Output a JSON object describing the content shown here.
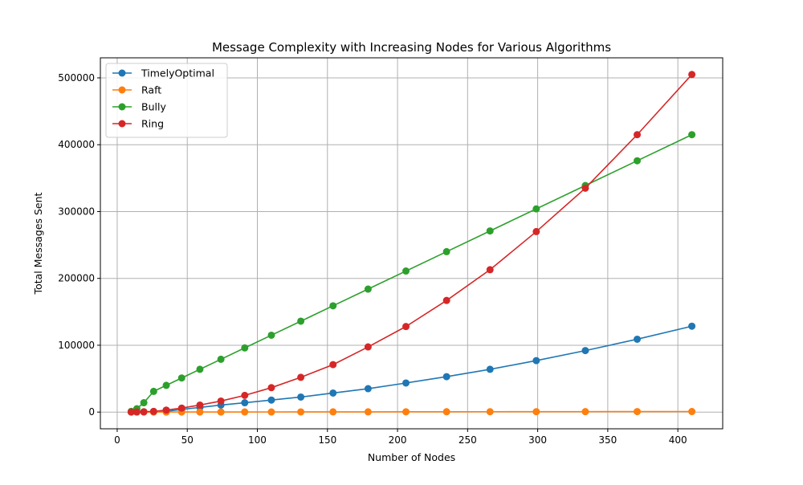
{
  "chart_data": {
    "type": "line",
    "title": "Message Complexity with Increasing Nodes for Various Algorithms",
    "xlabel": "Number of Nodes",
    "ylabel": "Total Messages Sent",
    "xlim": [
      -12,
      432
    ],
    "ylim": [
      -25000,
      530000
    ],
    "xticks": [
      0,
      50,
      100,
      150,
      200,
      250,
      300,
      350,
      400
    ],
    "yticks": [
      0,
      100000,
      200000,
      300000,
      400000,
      500000
    ],
    "grid": true,
    "legend_position": "top-left",
    "x": [
      10,
      14,
      19,
      26,
      35,
      46,
      59,
      74,
      91,
      110,
      131,
      154,
      179,
      206,
      235,
      266,
      299,
      334,
      371,
      410
    ],
    "series": [
      {
        "name": "TimelyOptimal",
        "color": "#1f77b4",
        "values": [
          100,
          180,
          320,
          600,
          1100,
          4000,
          7000,
          10500,
          14000,
          18000,
          22500,
          28500,
          35000,
          43500,
          53000,
          64000,
          77000,
          92000,
          109000,
          128500
        ]
      },
      {
        "name": "Raft",
        "color": "#ff7f0e",
        "values": [
          20,
          28,
          38,
          52,
          70,
          92,
          118,
          148,
          182,
          220,
          262,
          308,
          358,
          412,
          470,
          532,
          598,
          668,
          742,
          820
        ]
      },
      {
        "name": "Bully",
        "color": "#2ca02c",
        "values": [
          1000,
          5000,
          14000,
          31000,
          40000,
          51000,
          64000,
          79000,
          96000,
          115000,
          136000,
          159000,
          184000,
          211000,
          240000,
          271000,
          304000,
          339000,
          376000,
          415000
        ]
      },
      {
        "name": "Ring",
        "color": "#d62728",
        "values": [
          100,
          200,
          400,
          1000,
          3000,
          6000,
          10500,
          16500,
          25000,
          36500,
          52000,
          71000,
          97500,
          128000,
          167000,
          213000,
          270000,
          335000,
          415000,
          505000
        ]
      }
    ]
  }
}
